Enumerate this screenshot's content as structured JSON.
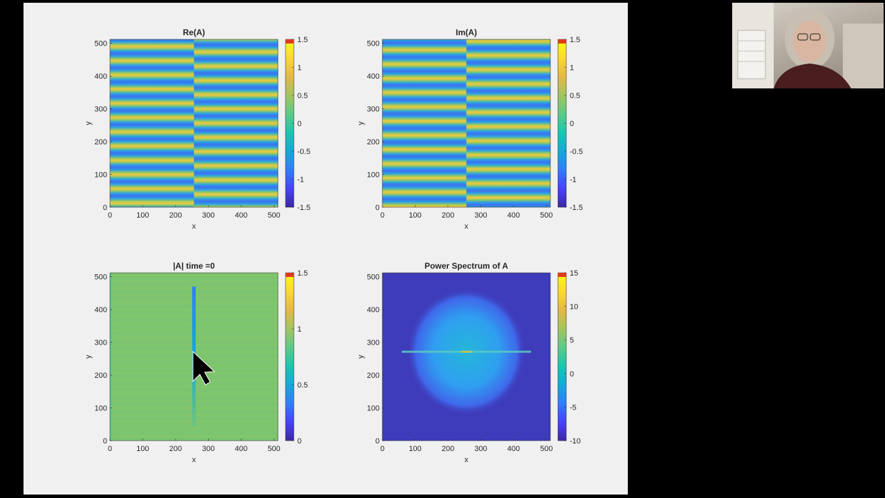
{
  "colors": {
    "parula": [
      "#3e26a8",
      "#4743f8",
      "#2f7efd",
      "#14a9da",
      "#1ac6b0",
      "#5bcb86",
      "#a3c55e",
      "#e5b843",
      "#fcd834",
      "#f9fb15"
    ],
    "figure_bg": "#f0f0f0",
    "tick_text": "#262626"
  },
  "chart_data": [
    {
      "type": "heatmap",
      "title": "Re(A)",
      "xlabel": "x",
      "ylabel": "y",
      "xlim": [
        0,
        512
      ],
      "ylim": [
        0,
        512
      ],
      "xticks": [
        "0",
        "100",
        "200",
        "300",
        "400",
        "500"
      ],
      "yticks": [
        "0",
        "100",
        "200",
        "300",
        "400",
        "500"
      ],
      "clim": [
        -1.5,
        1.5
      ],
      "colorbar_ticks": [
        "-1.5",
        "-1",
        "-0.5",
        "0",
        "0.5",
        "1",
        "1.5"
      ],
      "pattern": "horizontal stripes, phase shift at x≈256"
    },
    {
      "type": "heatmap",
      "title": "Im(A)",
      "xlabel": "x",
      "ylabel": "y",
      "xlim": [
        0,
        512
      ],
      "ylim": [
        0,
        512
      ],
      "xticks": [
        "0",
        "100",
        "200",
        "300",
        "400",
        "500"
      ],
      "yticks": [
        "0",
        "100",
        "200",
        "300",
        "400",
        "500"
      ],
      "clim": [
        -1.5,
        1.5
      ],
      "colorbar_ticks": [
        "-1.5",
        "-1",
        "-0.5",
        "0",
        "0.5",
        "1",
        "1.5"
      ],
      "pattern": "horizontal stripes, phase shift at x≈256"
    },
    {
      "type": "heatmap",
      "title": "|A|  time =0",
      "xlabel": "x",
      "ylabel": "y",
      "xlim": [
        0,
        512
      ],
      "ylim": [
        0,
        512
      ],
      "xticks": [
        "0",
        "100",
        "200",
        "300",
        "400",
        "500"
      ],
      "yticks": [
        "0",
        "100",
        "200",
        "300",
        "400",
        "500"
      ],
      "clim": [
        0,
        1.5
      ],
      "colorbar_ticks": [
        "0",
        "0.5",
        "1",
        "1.5"
      ],
      "pattern": "uniform ~1, vertical defect line at x≈256"
    },
    {
      "type": "heatmap",
      "title": "Power Spectrum of A",
      "xlabel": "x",
      "ylabel": "y",
      "xlim": [
        0,
        512
      ],
      "ylim": [
        0,
        512
      ],
      "xticks": [
        "0",
        "100",
        "200",
        "300",
        "400",
        "500"
      ],
      "yticks": [
        "0",
        "100",
        "200",
        "300",
        "400",
        "500"
      ],
      "clim": [
        -10,
        15
      ],
      "colorbar_ticks": [
        "-10",
        "-5",
        "0",
        "5",
        "10",
        "15"
      ],
      "pattern": "circular blob centered near (256,270), horizontal streak at y≈270"
    }
  ]
}
